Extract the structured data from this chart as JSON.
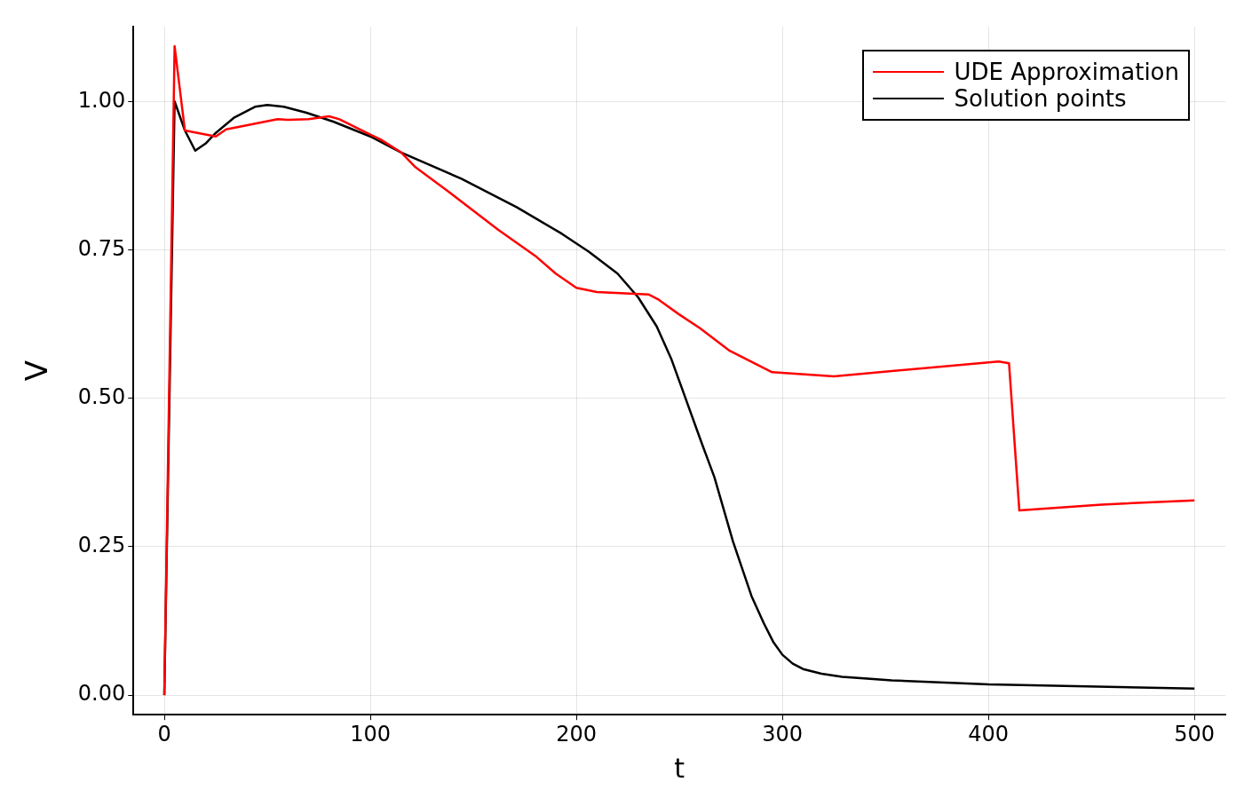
{
  "chart_data": {
    "type": "line",
    "xlabel": "t",
    "ylabel": "V",
    "xlim": [
      -15,
      515
    ],
    "ylim": [
      -0.033,
      1.126
    ],
    "xticks": [
      0,
      100,
      200,
      300,
      400,
      500
    ],
    "yticks": [
      {
        "value": 0,
        "label": "0.00"
      },
      {
        "value": 0.25,
        "label": "0.25"
      },
      {
        "value": 0.5,
        "label": "0.50"
      },
      {
        "value": 0.75,
        "label": "0.75"
      },
      {
        "value": 1,
        "label": "1.00"
      }
    ],
    "grid": true,
    "legend": "top right",
    "line_style": "solid",
    "marker": "none",
    "series": [
      {
        "name": "UDE Approximation",
        "color": "#ff0000",
        "x": [
          0,
          5,
          10,
          25,
          30,
          55,
          60,
          70,
          80,
          85,
          100,
          105,
          115,
          122,
          138,
          162,
          180,
          190,
          200,
          210,
          235,
          240,
          250,
          260,
          274,
          295,
          325,
          405,
          410,
          415,
          455,
          500
        ],
        "values": [
          0,
          1.093,
          0.951,
          0.941,
          0.953,
          0.97,
          0.969,
          0.97,
          0.975,
          0.97,
          0.944,
          0.936,
          0.914,
          0.889,
          0.848,
          0.784,
          0.74,
          0.71,
          0.686,
          0.679,
          0.675,
          0.666,
          0.641,
          0.618,
          0.581,
          0.544,
          0.537,
          0.562,
          0.559,
          0.311,
          0.321,
          0.328
        ]
      },
      {
        "name": "Solution points",
        "color": "#000000",
        "x": [
          0,
          5,
          10,
          15,
          20,
          25,
          34,
          44,
          50,
          58,
          69,
          82,
          100,
          115,
          144,
          171,
          193,
          206,
          220,
          230,
          239,
          246,
          261,
          267,
          276,
          285,
          291,
          295.5,
          300,
          305,
          310,
          319,
          329,
          353,
          400,
          500
        ],
        "values": [
          0,
          1.0,
          0.951,
          0.917,
          0.929,
          0.947,
          0.973,
          0.991,
          0.994,
          0.991,
          0.981,
          0.966,
          0.941,
          0.914,
          0.87,
          0.822,
          0.777,
          0.747,
          0.71,
          0.67,
          0.621,
          0.567,
          0.423,
          0.367,
          0.259,
          0.167,
          0.121,
          0.09,
          0.068,
          0.053,
          0.044,
          0.036,
          0.031,
          0.025,
          0.018,
          0.011
        ]
      }
    ]
  }
}
